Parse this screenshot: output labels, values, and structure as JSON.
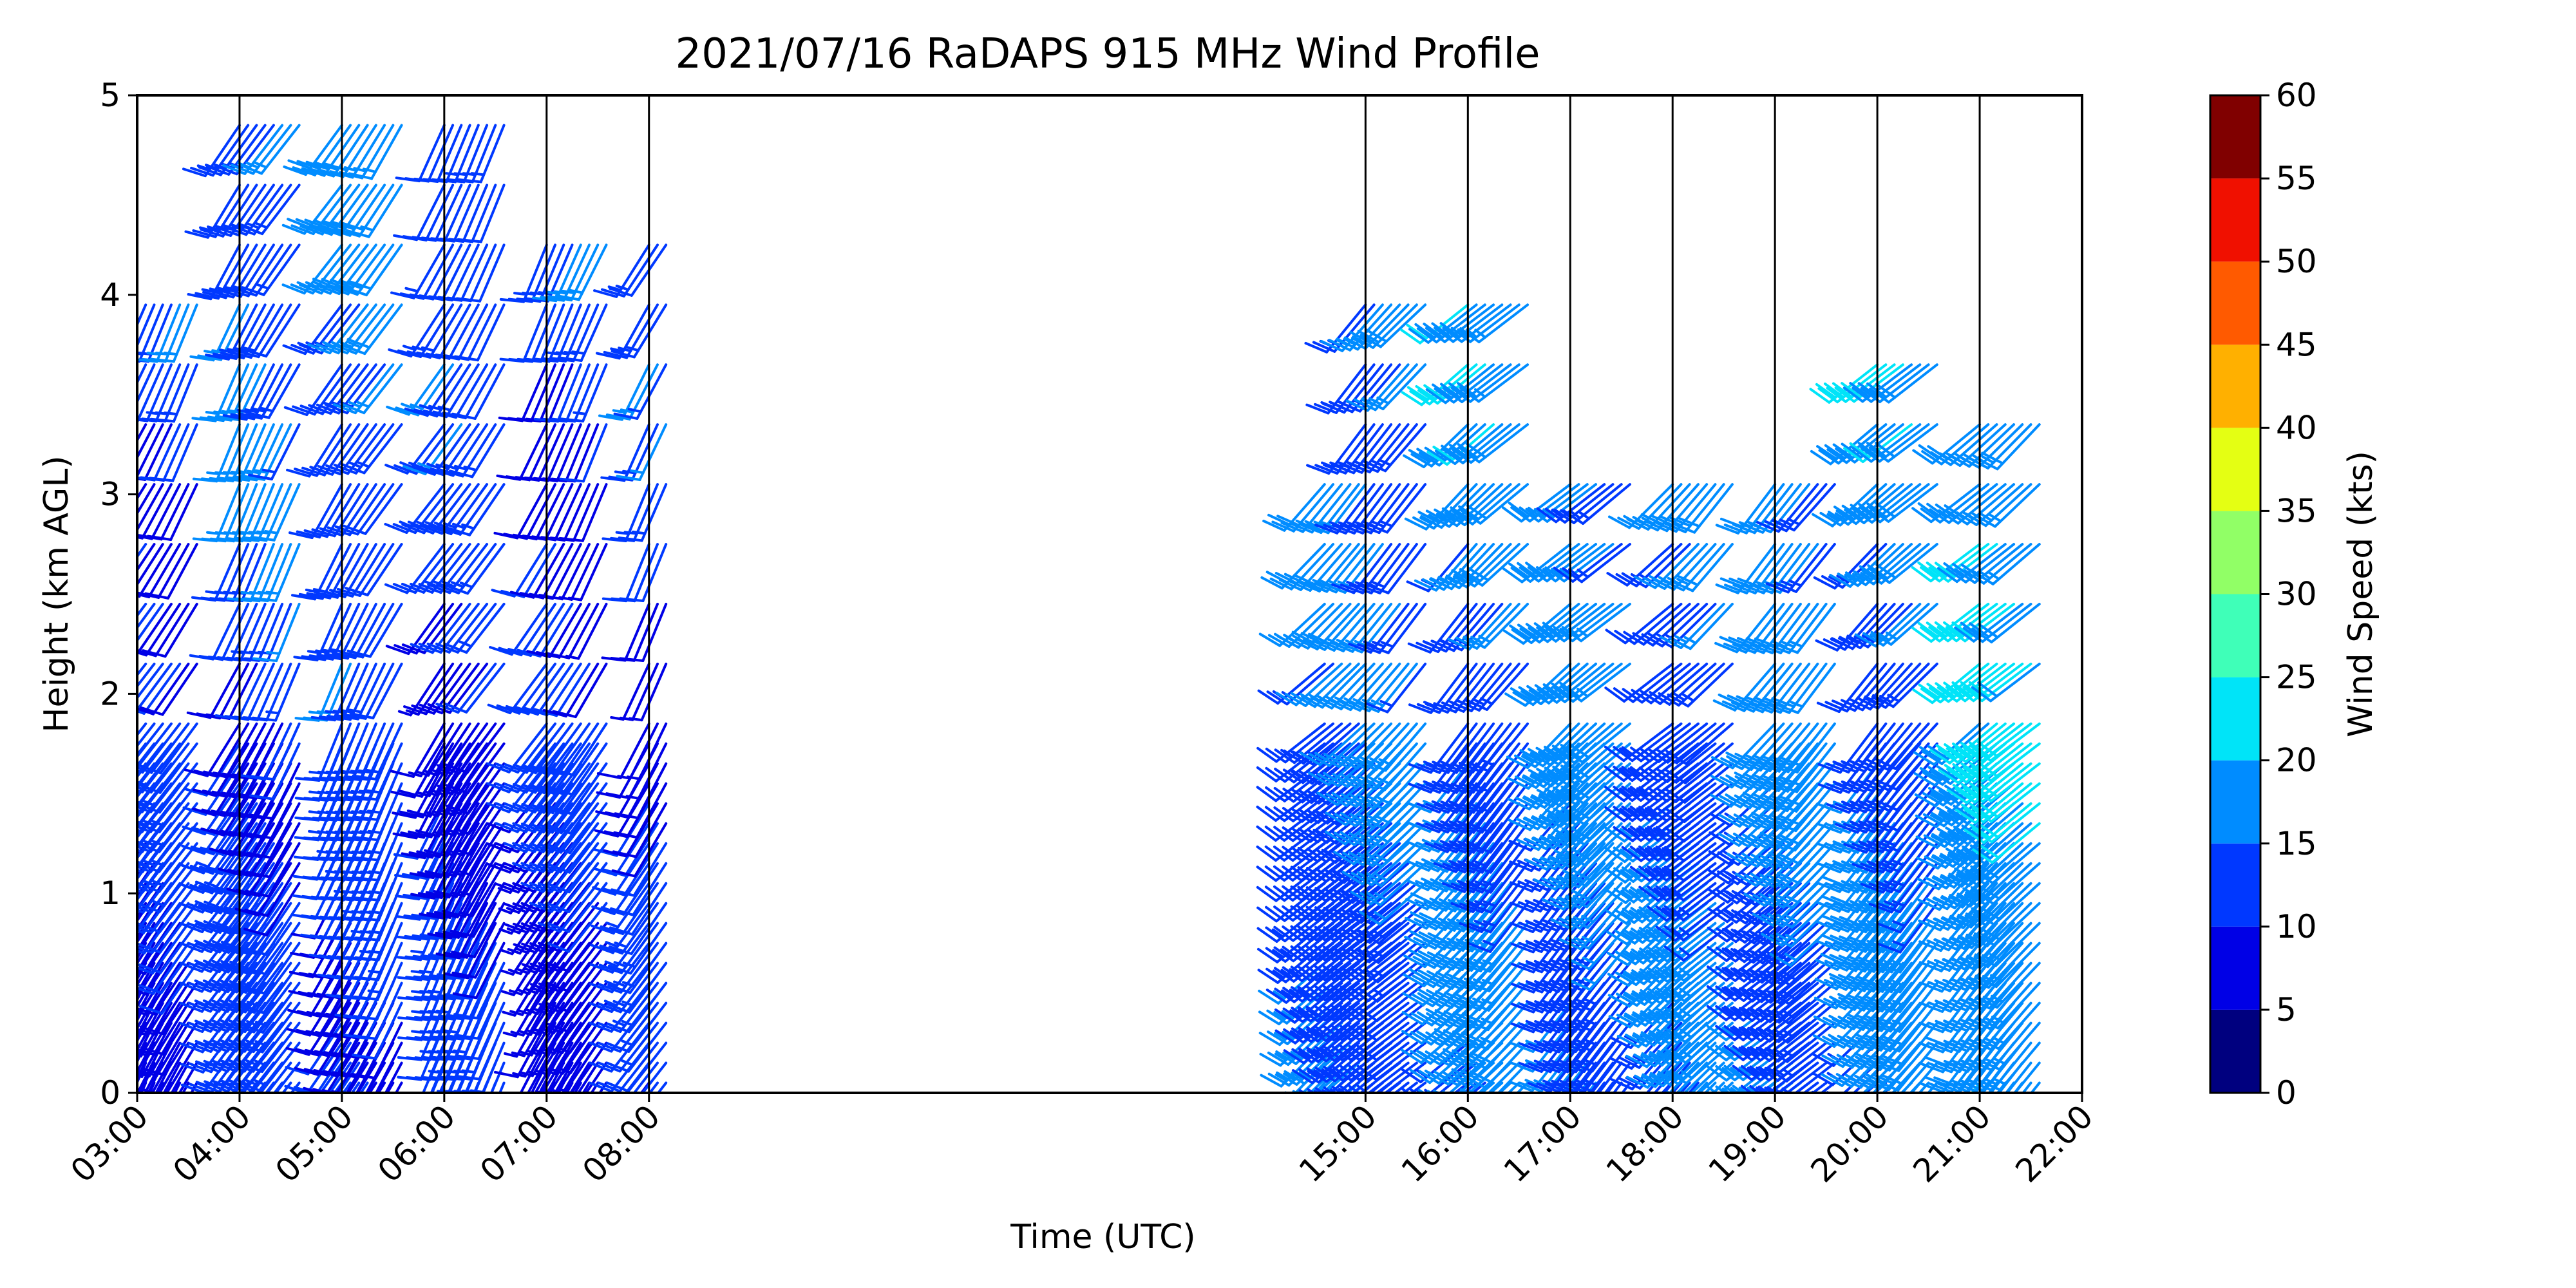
{
  "chart_data": {
    "type": "wind_barb_profile",
    "title": "2021/07/16 RaDAPS 915 MHz Wind Profile",
    "xlabel": "Time (UTC)",
    "ylabel": "Height (km AGL)",
    "x_ticks": [
      "03:00",
      "04:00",
      "05:00",
      "06:00",
      "07:00",
      "08:00",
      "15:00",
      "16:00",
      "17:00",
      "18:00",
      "19:00",
      "20:00",
      "21:00",
      "22:00"
    ],
    "x_range_hours": [
      3,
      22
    ],
    "y_ticks": [
      0,
      1,
      2,
      3,
      4,
      5
    ],
    "ylim": [
      0,
      5
    ],
    "vertical_lines_at_hours": [
      3,
      4,
      5,
      6,
      7,
      8,
      15,
      16,
      17,
      18,
      19,
      20,
      21,
      22
    ],
    "colorbar": {
      "label": "Wind Speed (kts)",
      "ticks": [
        0,
        5,
        10,
        15,
        20,
        25,
        30,
        35,
        40,
        45,
        50,
        55,
        60
      ],
      "colors": [
        "#00007f",
        "#0000e6",
        "#0038ff",
        "#008cff",
        "#00e4f8",
        "#3fffb8",
        "#91ff66",
        "#e4ff13",
        "#ffb000",
        "#ff5a00",
        "#f01000",
        "#800000"
      ]
    },
    "profile_segments": [
      {
        "start": 3,
        "end": 3.65,
        "speed": 10,
        "dir": 210,
        "top_km": 4.0
      },
      {
        "start": 4,
        "end": 4.65,
        "speed": 12,
        "dir": 210,
        "top_km": 5.0
      },
      {
        "start": 5,
        "end": 5.65,
        "speed": 12,
        "dir": 210,
        "top_km": 5.0
      },
      {
        "start": 6,
        "end": 6.65,
        "speed": 10,
        "dir": 210,
        "top_km": 5.0
      },
      {
        "start": 7,
        "end": 7.65,
        "speed": 9,
        "dir": 210,
        "top_km": 4.3
      },
      {
        "start": 8,
        "end": 8.25,
        "speed": 10,
        "dir": 210,
        "top_km": 4.3
      },
      {
        "start": 14.6,
        "end": 15,
        "speed": 14,
        "dir": 225,
        "top_km": 3.2
      },
      {
        "start": 15,
        "end": 15.65,
        "speed": 14,
        "dir": 225,
        "top_km": 4.05
      },
      {
        "start": 16,
        "end": 16.65,
        "speed": 15,
        "dir": 225,
        "top_km": 4.05
      },
      {
        "start": 17,
        "end": 17.65,
        "speed": 16,
        "dir": 225,
        "top_km": 3.2
      },
      {
        "start": 18,
        "end": 18.65,
        "speed": 14,
        "dir": 225,
        "top_km": 3.2
      },
      {
        "start": 19,
        "end": 19.65,
        "speed": 16,
        "dir": 225,
        "top_km": 3.2
      },
      {
        "start": 20,
        "end": 20.65,
        "speed": 15,
        "dir": 225,
        "top_km": 3.75
      },
      {
        "start": 21,
        "end": 21.65,
        "speed": 18,
        "dir": 225,
        "top_km": 3.5
      }
    ]
  }
}
